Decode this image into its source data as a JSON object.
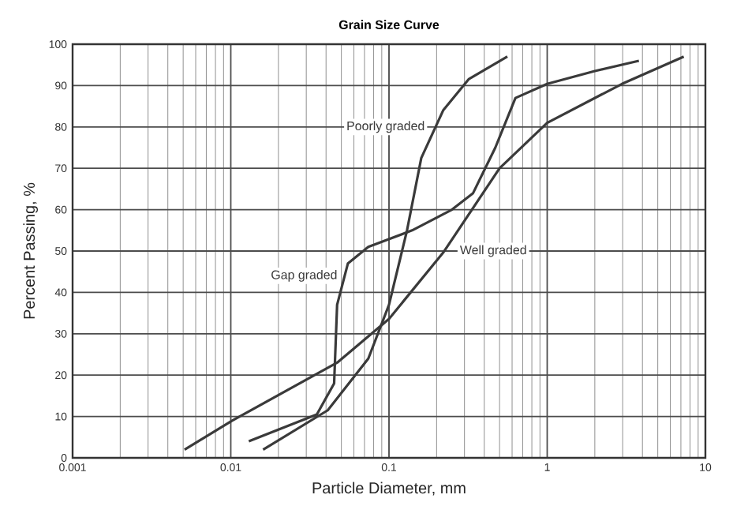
{
  "chart_data": {
    "type": "line",
    "title": "Grain Size Curve",
    "xlabel": "Particle Diameter, mm",
    "ylabel": "Percent Passing, %",
    "log": "x",
    "grid": true,
    "marker": "none",
    "line_style": "solid",
    "xlim": [
      0.001,
      10
    ],
    "xticks": [
      0.001,
      0.01,
      0.1,
      1,
      10
    ],
    "ylim": [
      0,
      100
    ],
    "yticks": [
      0,
      10,
      20,
      30,
      40,
      50,
      60,
      70,
      80,
      90,
      100
    ],
    "series": [
      {
        "name": "Poorly graded",
        "color": "#3a3a3a",
        "x": [
          0.016,
          0.041,
          0.074,
          0.1,
          0.13,
          0.16,
          0.22,
          0.32,
          0.56
        ],
        "values": [
          2,
          11.5,
          24,
          37,
          55,
          72.5,
          84,
          91.6,
          97
        ]
      },
      {
        "name": "Gap graded",
        "color": "#3a3a3a",
        "x": [
          0.013,
          0.035,
          0.045,
          0.047,
          0.055,
          0.074,
          0.14,
          0.25,
          0.34,
          0.47,
          0.63,
          1,
          2,
          3.8
        ],
        "values": [
          4,
          10.5,
          18,
          37,
          47,
          51,
          55,
          60,
          64,
          75,
          87,
          90.4,
          93.5,
          96
        ]
      },
      {
        "name": "Well graded",
        "color": "#3a3a3a",
        "x": [
          0.0051,
          0.0102,
          0.047,
          0.1,
          0.22,
          0.5,
          1,
          2.97,
          7.3
        ],
        "values": [
          2,
          9,
          23,
          33.6,
          49.6,
          70,
          81,
          90.4,
          97
        ]
      }
    ]
  }
}
